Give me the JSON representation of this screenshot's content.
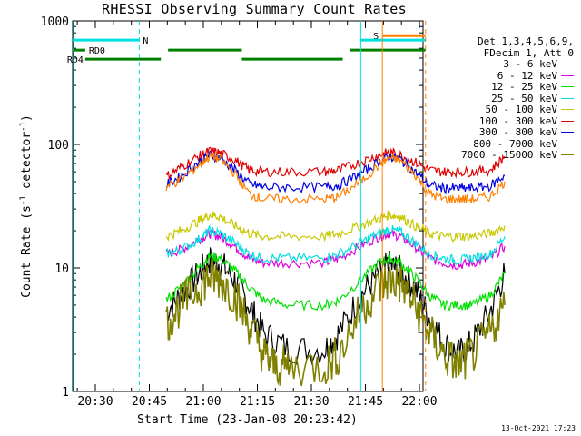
{
  "chart_data": {
    "type": "line",
    "title": "RHESSI Observing Summary Count Rates",
    "xlabel": "Start Time (23-Jan-08 20:23:42)",
    "ylabel_main": "Count Rate (s",
    "ylabel_sup1": "-1",
    "ylabel_mid": " detector",
    "ylabel_sup2": "-1",
    "ylabel_end": ")",
    "yscale": "log",
    "ylim": [
      1,
      1000
    ],
    "xlim_minutes": [
      "20:23:42",
      "22:01:00"
    ],
    "xticks": [
      "20:30",
      "20:45",
      "21:00",
      "21:15",
      "21:30",
      "21:45",
      "22:00"
    ],
    "yticks": [
      "1",
      "10",
      "100",
      "1000"
    ],
    "legend_header": [
      "Det 1,3,4,5,6,9,",
      "FDecim 1, Att 0"
    ],
    "series": [
      {
        "name": "3 - 6 keV",
        "color": "#000000",
        "points": [
          [
            26,
            4.5
          ],
          [
            30,
            6
          ],
          [
            35,
            9
          ],
          [
            38,
            11.5
          ],
          [
            41,
            11
          ],
          [
            45,
            8
          ],
          [
            49,
            5
          ],
          [
            53,
            3
          ],
          [
            60,
            2.2
          ],
          [
            70,
            2.2
          ],
          [
            74,
            3
          ],
          [
            80,
            6
          ],
          [
            85,
            9
          ],
          [
            88,
            10.5
          ],
          [
            91,
            9.5
          ],
          [
            95,
            7
          ],
          [
            99,
            4
          ],
          [
            103,
            2.5
          ],
          [
            107,
            2
          ],
          [
            111,
            2.5
          ],
          [
            116,
            4.5
          ],
          [
            120,
            9
          ]
        ]
      },
      {
        "name": "6 - 12 keV",
        "color": "#e000e0",
        "points": [
          [
            26,
            13
          ],
          [
            30,
            14
          ],
          [
            35,
            17
          ],
          [
            38,
            19
          ],
          [
            41,
            18
          ],
          [
            45,
            15
          ],
          [
            49,
            12
          ],
          [
            53,
            11
          ],
          [
            60,
            11
          ],
          [
            70,
            11
          ],
          [
            74,
            12
          ],
          [
            80,
            15
          ],
          [
            85,
            18
          ],
          [
            88,
            19
          ],
          [
            91,
            18
          ],
          [
            95,
            15
          ],
          [
            99,
            12
          ],
          [
            103,
            11
          ],
          [
            107,
            10.5
          ],
          [
            111,
            11
          ],
          [
            116,
            12
          ],
          [
            120,
            15
          ]
        ]
      },
      {
        "name": "12 - 25 keV",
        "color": "#00e000",
        "points": [
          [
            26,
            5.5
          ],
          [
            30,
            7
          ],
          [
            35,
            10
          ],
          [
            38,
            12.5
          ],
          [
            41,
            12
          ],
          [
            45,
            9.5
          ],
          [
            49,
            7
          ],
          [
            53,
            5.5
          ],
          [
            60,
            5
          ],
          [
            70,
            5
          ],
          [
            74,
            5.5
          ],
          [
            80,
            8
          ],
          [
            85,
            11
          ],
          [
            88,
            12
          ],
          [
            91,
            11
          ],
          [
            95,
            8.5
          ],
          [
            99,
            6
          ],
          [
            103,
            5
          ],
          [
            107,
            5
          ],
          [
            111,
            5
          ],
          [
            116,
            6
          ],
          [
            120,
            9
          ]
        ]
      },
      {
        "name": "25 - 50 keV",
        "color": "#00e0e0",
        "points": [
          [
            26,
            13
          ],
          [
            30,
            14
          ],
          [
            35,
            17
          ],
          [
            38,
            20
          ],
          [
            41,
            19
          ],
          [
            45,
            16
          ],
          [
            49,
            13
          ],
          [
            53,
            12
          ],
          [
            60,
            12
          ],
          [
            70,
            12
          ],
          [
            74,
            13
          ],
          [
            80,
            16
          ],
          [
            85,
            19
          ],
          [
            88,
            20.5
          ],
          [
            91,
            19.5
          ],
          [
            95,
            16
          ],
          [
            99,
            13
          ],
          [
            103,
            12
          ],
          [
            107,
            11.5
          ],
          [
            111,
            12
          ],
          [
            116,
            13
          ],
          [
            120,
            18
          ]
        ]
      },
      {
        "name": "50 - 100 keV",
        "color": "#c8c800",
        "points": [
          [
            26,
            18
          ],
          [
            30,
            20
          ],
          [
            35,
            24
          ],
          [
            38,
            27
          ],
          [
            41,
            26
          ],
          [
            45,
            22
          ],
          [
            49,
            19
          ],
          [
            53,
            18
          ],
          [
            60,
            18
          ],
          [
            70,
            18
          ],
          [
            74,
            19
          ],
          [
            80,
            22
          ],
          [
            85,
            25
          ],
          [
            88,
            27
          ],
          [
            91,
            26
          ],
          [
            95,
            22
          ],
          [
            99,
            19
          ],
          [
            103,
            18
          ],
          [
            107,
            18
          ],
          [
            111,
            18
          ],
          [
            116,
            19
          ],
          [
            120,
            22
          ]
        ]
      },
      {
        "name": "100 - 300 keV",
        "color": "#e00000",
        "points": [
          [
            26,
            55
          ],
          [
            30,
            65
          ],
          [
            35,
            80
          ],
          [
            38,
            88
          ],
          [
            41,
            85
          ],
          [
            45,
            75
          ],
          [
            49,
            62
          ],
          [
            53,
            60
          ],
          [
            60,
            60
          ],
          [
            70,
            60
          ],
          [
            74,
            62
          ],
          [
            80,
            72
          ],
          [
            85,
            82
          ],
          [
            88,
            86
          ],
          [
            91,
            82
          ],
          [
            95,
            72
          ],
          [
            99,
            62
          ],
          [
            103,
            60
          ],
          [
            107,
            60
          ],
          [
            111,
            60
          ],
          [
            116,
            62
          ],
          [
            120,
            80
          ]
        ]
      },
      {
        "name": "300 - 800 keV",
        "color": "#0000e0",
        "points": [
          [
            26,
            47
          ],
          [
            30,
            55
          ],
          [
            35,
            72
          ],
          [
            38,
            82
          ],
          [
            41,
            78
          ],
          [
            45,
            62
          ],
          [
            49,
            48
          ],
          [
            53,
            45
          ],
          [
            60,
            45
          ],
          [
            70,
            45
          ],
          [
            74,
            47
          ],
          [
            80,
            58
          ],
          [
            85,
            72
          ],
          [
            88,
            80
          ],
          [
            91,
            76
          ],
          [
            95,
            60
          ],
          [
            99,
            47
          ],
          [
            103,
            44
          ],
          [
            107,
            44
          ],
          [
            111,
            44
          ],
          [
            116,
            46
          ],
          [
            120,
            56
          ]
        ]
      },
      {
        "name": "800 - 7000 keV",
        "color": "#ff8000",
        "points": [
          [
            26,
            45
          ],
          [
            30,
            52
          ],
          [
            35,
            68
          ],
          [
            38,
            80
          ],
          [
            41,
            76
          ],
          [
            45,
            58
          ],
          [
            49,
            40
          ],
          [
            53,
            36
          ],
          [
            60,
            36
          ],
          [
            70,
            36
          ],
          [
            74,
            38
          ],
          [
            80,
            50
          ],
          [
            85,
            68
          ],
          [
            88,
            78
          ],
          [
            91,
            74
          ],
          [
            95,
            58
          ],
          [
            99,
            40
          ],
          [
            103,
            36
          ],
          [
            107,
            36
          ],
          [
            111,
            36
          ],
          [
            116,
            38
          ],
          [
            120,
            50
          ]
        ]
      },
      {
        "name": "7000 - 15000 keV",
        "color": "#808000",
        "points": [
          [
            26,
            3.5
          ],
          [
            30,
            5
          ],
          [
            35,
            7
          ],
          [
            38,
            8.5
          ],
          [
            41,
            8
          ],
          [
            45,
            6
          ],
          [
            49,
            3.5
          ],
          [
            53,
            2
          ],
          [
            56,
            1.6
          ],
          [
            60,
            1.6
          ],
          [
            70,
            1.6
          ],
          [
            74,
            2
          ],
          [
            80,
            4.5
          ],
          [
            85,
            7
          ],
          [
            88,
            8
          ],
          [
            91,
            7.5
          ],
          [
            95,
            5
          ],
          [
            99,
            3
          ],
          [
            103,
            2
          ],
          [
            107,
            1.6
          ],
          [
            111,
            2
          ],
          [
            116,
            3
          ],
          [
            120,
            5
          ]
        ]
      }
    ],
    "bars": [
      {
        "label": "N",
        "color": "#00e0e0",
        "start_min": 0,
        "end_min": 18.5,
        "level": 700
      },
      {
        "label": "RD0",
        "color": "#008000",
        "start_min": 0,
        "end_min": 3.5,
        "level": 580
      },
      {
        "label": "RD4",
        "color": "#008000",
        "start_min": 3.5,
        "end_min": 24.5,
        "level": 490
      },
      {
        "label": "",
        "color": "#008000",
        "start_min": 26.5,
        "end_min": 47,
        "level": 580
      },
      {
        "label": "",
        "color": "#008000",
        "start_min": 47,
        "end_min": 75,
        "level": 490
      },
      {
        "label": "",
        "color": "#008000",
        "start_min": 77,
        "end_min": 98,
        "level": 580
      },
      {
        "label": "S",
        "color": "#ff8000",
        "start_min": 86,
        "end_min": 98,
        "level": 760
      },
      {
        "label": "",
        "color": "#00e0e0",
        "start_min": 80,
        "end_min": 98,
        "level": 700
      }
    ]
  },
  "stamp": "13-Oct-2021 17:23"
}
